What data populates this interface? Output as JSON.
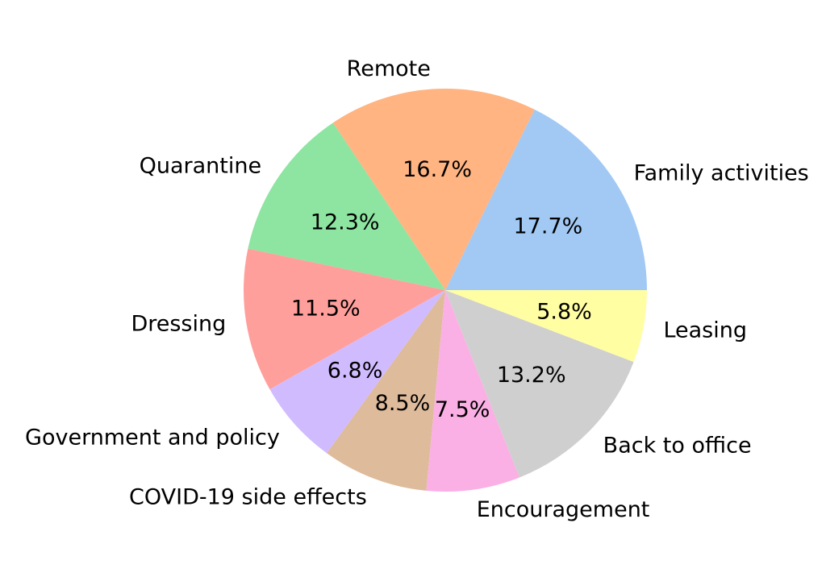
{
  "chart_data": {
    "type": "pie",
    "title": "",
    "start_angle_deg": 0,
    "direction": "counterclockwise",
    "slices": [
      {
        "label": "Family activities",
        "value": 17.7,
        "pct_label": "17.7%",
        "color": "#a1c9f4"
      },
      {
        "label": "Remote",
        "value": 16.7,
        "pct_label": "16.7%",
        "color": "#ffb482"
      },
      {
        "label": "Quarantine",
        "value": 12.3,
        "pct_label": "12.3%",
        "color": "#8de5a1"
      },
      {
        "label": "Dressing",
        "value": 11.5,
        "pct_label": "11.5%",
        "color": "#ff9f9b"
      },
      {
        "label": "Government and policy",
        "value": 6.8,
        "pct_label": "6.8%",
        "color": "#d0bbff"
      },
      {
        "label": "COVID-19 side effects",
        "value": 8.5,
        "pct_label": "8.5%",
        "color": "#debb9b"
      },
      {
        "label": "Encouragement",
        "value": 7.5,
        "pct_label": "7.5%",
        "color": "#fab0e4"
      },
      {
        "label": "Back to office",
        "value": 13.2,
        "pct_label": "13.2%",
        "color": "#cfcfcf"
      },
      {
        "label": "Leasing",
        "value": 5.8,
        "pct_label": "5.8%",
        "color": "#fffea3"
      }
    ]
  }
}
